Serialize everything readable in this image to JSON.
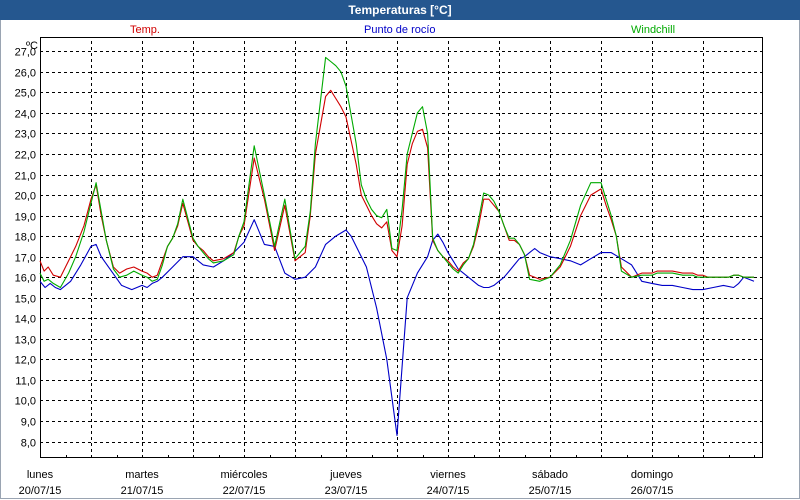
{
  "window": {
    "title": "Temperaturas [°C]"
  },
  "colors": {
    "title_bar": "#25578f",
    "temp": "#d00000",
    "dew_point": "#0000c8",
    "windchill": "#00aa00"
  },
  "chart_data": {
    "type": "line",
    "ylabel": "ºC",
    "ylim": [
      7.2,
      27.5
    ],
    "yticks": [
      "8,0",
      "9,0",
      "10,0",
      "11,0",
      "12,0",
      "13,0",
      "14,0",
      "15,0",
      "16,0",
      "17,0",
      "18,0",
      "19,0",
      "20,0",
      "21,0",
      "22,0",
      "23,0",
      "24,0",
      "25,0",
      "26,0",
      "27,0"
    ],
    "grid": true,
    "legend_position": "top",
    "x_start": "20/07/15 00:00",
    "x_end": "27/07/15 00:00",
    "x_labels": [
      {
        "day": "lunes",
        "date": "20/07/15"
      },
      {
        "day": "martes",
        "date": "21/07/15"
      },
      {
        "day": "miércoles",
        "date": "22/07/15"
      },
      {
        "day": "jueves",
        "date": "23/07/15"
      },
      {
        "day": "viernes",
        "date": "24/07/15"
      },
      {
        "day": "sábado",
        "date": "25/07/15"
      },
      {
        "day": "domingo",
        "date": "26/07/15"
      }
    ],
    "series": [
      {
        "name": "Temp.",
        "color": "#d00000",
        "x": [
          0,
          0.04,
          0.08,
          0.13,
          0.2,
          0.28,
          0.35,
          0.43,
          0.5,
          0.55,
          0.6,
          0.65,
          0.72,
          0.78,
          0.85,
          0.92,
          1.0,
          1.05,
          1.1,
          1.15,
          1.2,
          1.25,
          1.3,
          1.35,
          1.4,
          1.5,
          1.55,
          1.6,
          1.65,
          1.7,
          1.8,
          1.9,
          1.95,
          2.0,
          2.1,
          2.2,
          2.3,
          2.4,
          2.5,
          2.6,
          2.65,
          2.7,
          2.8,
          2.85,
          2.9,
          2.95,
          3.0,
          3.1,
          3.15,
          3.2,
          3.25,
          3.3,
          3.35,
          3.4,
          3.45,
          3.5,
          3.55,
          3.6,
          3.65,
          3.7,
          3.75,
          3.8,
          3.85,
          3.9,
          3.95,
          4.0,
          4.05,
          4.1,
          4.15,
          4.2,
          4.25,
          4.3,
          4.35,
          4.4,
          4.45,
          4.5,
          4.55,
          4.6,
          4.65,
          4.7,
          4.75,
          4.8,
          4.9,
          5.0,
          5.1,
          5.2,
          5.3,
          5.4,
          5.5,
          5.55,
          5.6,
          5.65,
          5.7,
          5.8,
          5.9,
          6.0,
          6.05,
          6.1,
          6.15,
          6.2,
          6.3,
          6.4,
          6.45,
          6.5,
          6.55,
          6.6,
          6.65,
          6.7,
          6.75,
          6.8,
          6.85,
          6.9,
          6.95,
          7.0
        ],
        "values": [
          16.8,
          16.3,
          16.5,
          16.1,
          16.0,
          16.8,
          17.5,
          18.5,
          19.8,
          20.5,
          19.0,
          17.8,
          16.5,
          16.2,
          16.4,
          16.5,
          16.3,
          16.2,
          16.0,
          16.1,
          16.8,
          17.5,
          17.9,
          18.5,
          19.6,
          17.8,
          17.5,
          17.3,
          17.0,
          16.8,
          16.9,
          17.2,
          18.0,
          18.5,
          21.8,
          19.8,
          17.3,
          19.5,
          16.8,
          17.2,
          19.0,
          22.0,
          24.8,
          25.1,
          24.7,
          24.3,
          23.8,
          21.5,
          20.0,
          19.5,
          19.0,
          18.6,
          18.4,
          18.7,
          17.3,
          17.0,
          18.5,
          21.5,
          22.5,
          23.1,
          23.2,
          22.3,
          17.8,
          17.3,
          17.0,
          16.8,
          16.5,
          16.3,
          16.7,
          16.9,
          17.5,
          18.5,
          19.8,
          19.8,
          19.5,
          19.2,
          18.5,
          17.8,
          17.8,
          17.6,
          17.1,
          16.1,
          15.9,
          16.0,
          16.5,
          17.5,
          19.0,
          20.0,
          20.3,
          19.5,
          18.8,
          18.0,
          16.5,
          16.0,
          16.2,
          16.2,
          16.3,
          16.3,
          16.3,
          16.3,
          16.2,
          16.2,
          16.1,
          16.1,
          16.0,
          16.0,
          16.0,
          16.0,
          16.0,
          16.1,
          16.1,
          16.0,
          16.0,
          16.0
        ]
      },
      {
        "name": "Punto de rocío",
        "color": "#0000c8",
        "x": [
          0,
          0.05,
          0.1,
          0.15,
          0.2,
          0.3,
          0.4,
          0.5,
          0.55,
          0.6,
          0.7,
          0.8,
          0.9,
          1.0,
          1.05,
          1.1,
          1.15,
          1.2,
          1.3,
          1.4,
          1.5,
          1.6,
          1.7,
          1.8,
          1.9,
          2.0,
          2.1,
          2.2,
          2.3,
          2.4,
          2.5,
          2.6,
          2.7,
          2.8,
          2.9,
          3.0,
          3.05,
          3.1,
          3.2,
          3.3,
          3.4,
          3.5,
          3.6,
          3.7,
          3.8,
          3.85,
          3.9,
          3.95,
          4.0,
          4.05,
          4.1,
          4.15,
          4.2,
          4.25,
          4.3,
          4.35,
          4.4,
          4.45,
          4.5,
          4.55,
          4.6,
          4.65,
          4.7,
          4.75,
          4.8,
          4.85,
          4.9,
          5.0,
          5.1,
          5.2,
          5.3,
          5.4,
          5.5,
          5.6,
          5.7,
          5.8,
          5.9,
          6.0,
          6.1,
          6.2,
          6.3,
          6.4,
          6.5,
          6.6,
          6.7,
          6.8,
          6.85,
          6.9,
          6.95,
          7.0
        ],
        "values": [
          15.8,
          15.5,
          15.7,
          15.5,
          15.4,
          15.8,
          16.6,
          17.5,
          17.6,
          17.0,
          16.3,
          15.6,
          15.4,
          15.6,
          15.5,
          15.7,
          15.8,
          16.0,
          16.5,
          17.0,
          17.0,
          16.6,
          16.5,
          16.8,
          17.2,
          17.7,
          18.8,
          17.6,
          17.5,
          16.2,
          15.9,
          16.0,
          16.5,
          17.6,
          18.0,
          18.3,
          18.0,
          17.5,
          16.5,
          14.5,
          12.0,
          8.3,
          15.0,
          16.2,
          17.0,
          17.8,
          18.1,
          17.7,
          17.2,
          16.8,
          16.4,
          16.2,
          16.0,
          15.8,
          15.6,
          15.5,
          15.5,
          15.6,
          15.8,
          16.0,
          16.3,
          16.6,
          16.9,
          17.0,
          17.2,
          17.4,
          17.2,
          17.0,
          16.9,
          16.8,
          16.6,
          16.9,
          17.2,
          17.2,
          16.9,
          16.6,
          15.8,
          15.7,
          15.6,
          15.6,
          15.5,
          15.4,
          15.4,
          15.5,
          15.6,
          15.5,
          15.7,
          16.0,
          15.9,
          15.8
        ]
      },
      {
        "name": "Windchill",
        "color": "#00aa00",
        "x": [
          0,
          0.04,
          0.08,
          0.13,
          0.2,
          0.28,
          0.35,
          0.43,
          0.5,
          0.55,
          0.6,
          0.65,
          0.72,
          0.78,
          0.85,
          0.92,
          1.0,
          1.05,
          1.1,
          1.15,
          1.2,
          1.25,
          1.3,
          1.35,
          1.4,
          1.5,
          1.55,
          1.6,
          1.65,
          1.7,
          1.8,
          1.9,
          1.95,
          2.0,
          2.1,
          2.2,
          2.3,
          2.4,
          2.5,
          2.6,
          2.65,
          2.7,
          2.8,
          2.85,
          2.9,
          2.95,
          3.0,
          3.1,
          3.15,
          3.2,
          3.25,
          3.3,
          3.35,
          3.4,
          3.45,
          3.5,
          3.55,
          3.6,
          3.65,
          3.7,
          3.75,
          3.8,
          3.85,
          3.9,
          3.95,
          4.0,
          4.05,
          4.1,
          4.15,
          4.2,
          4.25,
          4.3,
          4.35,
          4.4,
          4.45,
          4.5,
          4.55,
          4.6,
          4.65,
          4.7,
          4.75,
          4.8,
          4.9,
          5.0,
          5.1,
          5.2,
          5.3,
          5.4,
          5.5,
          5.55,
          5.6,
          5.65,
          5.7,
          5.8,
          5.9,
          6.0,
          6.05,
          6.1,
          6.15,
          6.2,
          6.3,
          6.4,
          6.45,
          6.5,
          6.55,
          6.6,
          6.65,
          6.7,
          6.75,
          6.8,
          6.85,
          6.9,
          6.95,
          7.0
        ],
        "values": [
          16.2,
          15.8,
          15.9,
          15.7,
          15.5,
          16.2,
          17.0,
          18.2,
          19.6,
          20.6,
          19.2,
          17.8,
          16.4,
          16.0,
          16.1,
          16.3,
          16.1,
          16.0,
          15.8,
          15.9,
          16.6,
          17.5,
          17.9,
          18.6,
          19.8,
          17.9,
          17.5,
          17.2,
          16.9,
          16.7,
          16.8,
          17.1,
          18.0,
          18.7,
          22.4,
          20.0,
          17.5,
          19.8,
          16.9,
          17.5,
          19.2,
          22.5,
          26.7,
          26.5,
          26.3,
          26.0,
          25.3,
          22.5,
          20.5,
          19.8,
          19.3,
          19.0,
          18.9,
          19.3,
          17.4,
          17.3,
          19.3,
          22.0,
          23.0,
          24.0,
          24.3,
          23.0,
          17.9,
          17.3,
          17.0,
          16.7,
          16.4,
          16.2,
          16.6,
          16.9,
          17.6,
          18.8,
          20.1,
          20.0,
          19.7,
          19.2,
          18.5,
          17.9,
          17.9,
          17.6,
          17.1,
          15.9,
          15.8,
          16.0,
          16.6,
          17.8,
          19.5,
          20.6,
          20.6,
          19.8,
          19.0,
          18.0,
          16.3,
          16.0,
          16.1,
          16.1,
          16.2,
          16.2,
          16.2,
          16.2,
          16.1,
          16.1,
          16.0,
          16.0,
          16.0,
          16.0,
          16.0,
          16.0,
          16.0,
          16.1,
          16.1,
          16.0,
          16.0,
          16.0
        ]
      }
    ]
  }
}
